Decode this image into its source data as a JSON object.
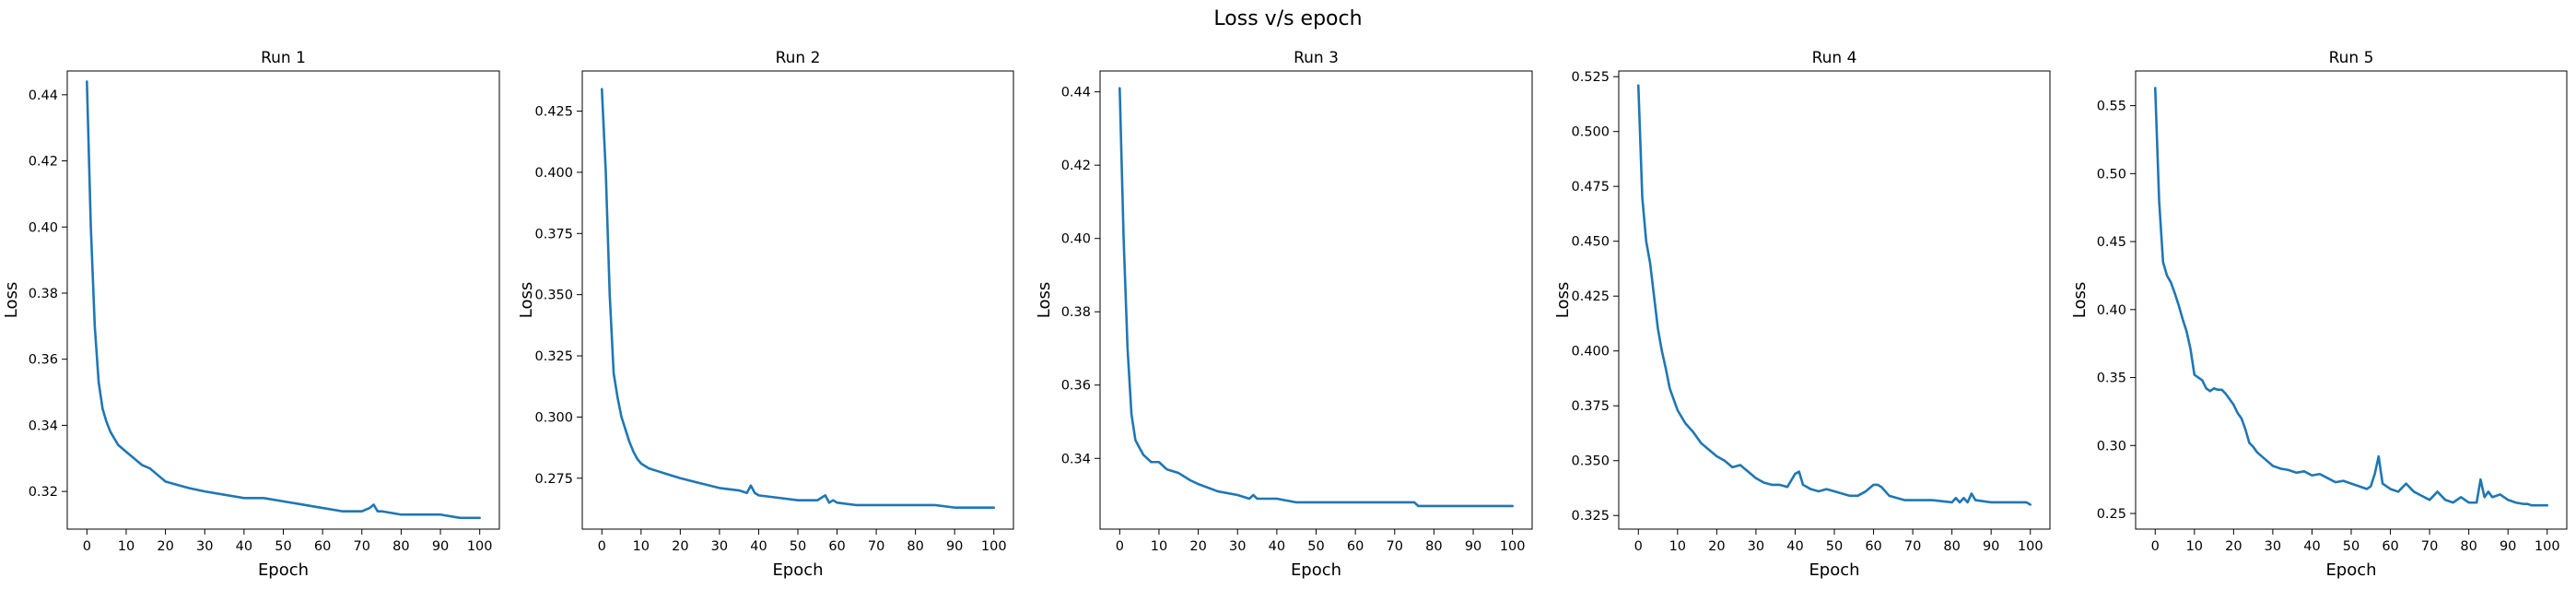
{
  "figure_title": "Loss v/s epoch",
  "colors": {
    "line": "#1f77b4"
  },
  "chart_data": [
    {
      "type": "line",
      "title": "Run 1",
      "xlabel": "Epoch",
      "ylabel": "Loss",
      "xlim": [
        -5,
        105
      ],
      "ylim": [
        0.3086,
        0.4472
      ],
      "xticks": [
        0,
        10,
        20,
        30,
        40,
        50,
        60,
        70,
        80,
        90,
        100
      ],
      "yticks": [
        0.32,
        0.34,
        0.36,
        0.38,
        0.4,
        0.42,
        0.44
      ],
      "ytick_labels": [
        "0.32",
        "0.34",
        "0.36",
        "0.38",
        "0.40",
        "0.42",
        "0.44"
      ],
      "grid": false,
      "x": [
        0,
        1,
        2,
        3,
        4,
        5,
        6,
        7,
        8,
        10,
        12,
        14,
        16,
        18,
        20,
        23,
        26,
        30,
        35,
        40,
        45,
        50,
        55,
        60,
        65,
        70,
        72,
        73,
        74,
        75,
        80,
        85,
        90,
        95,
        100
      ],
      "y": [
        0.444,
        0.4,
        0.37,
        0.353,
        0.345,
        0.341,
        0.338,
        0.336,
        0.334,
        0.332,
        0.33,
        0.328,
        0.327,
        0.325,
        0.323,
        0.322,
        0.321,
        0.32,
        0.319,
        0.318,
        0.318,
        0.317,
        0.316,
        0.315,
        0.314,
        0.314,
        0.315,
        0.316,
        0.314,
        0.314,
        0.313,
        0.313,
        0.313,
        0.312,
        0.312
      ]
    },
    {
      "type": "line",
      "title": "Run 2",
      "xlabel": "Epoch",
      "ylabel": "Loss",
      "xlim": [
        -5,
        105
      ],
      "ylim": [
        0.2542,
        0.4414
      ],
      "xticks": [
        0,
        10,
        20,
        30,
        40,
        50,
        60,
        70,
        80,
        90,
        100
      ],
      "yticks": [
        0.275,
        0.3,
        0.325,
        0.35,
        0.375,
        0.4,
        0.425
      ],
      "ytick_labels": [
        "0.275",
        "0.300",
        "0.325",
        "0.350",
        "0.375",
        "0.400",
        "0.425"
      ],
      "grid": false,
      "x": [
        0,
        1,
        2,
        3,
        4,
        5,
        6,
        7,
        8,
        9,
        10,
        12,
        14,
        16,
        18,
        20,
        25,
        30,
        35,
        37,
        38,
        39,
        40,
        45,
        50,
        55,
        57,
        58,
        59,
        60,
        65,
        70,
        75,
        80,
        85,
        90,
        95,
        100
      ],
      "y": [
        0.434,
        0.4,
        0.35,
        0.318,
        0.308,
        0.3,
        0.295,
        0.29,
        0.286,
        0.283,
        0.281,
        0.279,
        0.278,
        0.277,
        0.276,
        0.275,
        0.273,
        0.271,
        0.27,
        0.269,
        0.272,
        0.269,
        0.268,
        0.267,
        0.266,
        0.266,
        0.268,
        0.265,
        0.266,
        0.265,
        0.264,
        0.264,
        0.264,
        0.264,
        0.264,
        0.263,
        0.263,
        0.263
      ]
    },
    {
      "type": "line",
      "title": "Run 3",
      "xlabel": "Epoch",
      "ylabel": "Loss",
      "xlim": [
        -5,
        105
      ],
      "ylim": [
        0.3207,
        0.4457
      ],
      "xticks": [
        0,
        10,
        20,
        30,
        40,
        50,
        60,
        70,
        80,
        90,
        100
      ],
      "yticks": [
        0.34,
        0.36,
        0.38,
        0.4,
        0.42,
        0.44
      ],
      "ytick_labels": [
        "0.34",
        "0.36",
        "0.38",
        "0.40",
        "0.42",
        "0.44"
      ],
      "grid": false,
      "x": [
        0,
        1,
        2,
        3,
        4,
        5,
        6,
        7,
        8,
        10,
        12,
        15,
        18,
        20,
        25,
        30,
        33,
        34,
        35,
        40,
        45,
        50,
        55,
        60,
        65,
        70,
        75,
        76,
        77,
        80,
        85,
        90,
        95,
        100
      ],
      "y": [
        0.441,
        0.4,
        0.37,
        0.352,
        0.345,
        0.343,
        0.341,
        0.34,
        0.339,
        0.339,
        0.337,
        0.336,
        0.334,
        0.333,
        0.331,
        0.33,
        0.329,
        0.33,
        0.329,
        0.329,
        0.328,
        0.328,
        0.328,
        0.328,
        0.328,
        0.328,
        0.328,
        0.327,
        0.327,
        0.327,
        0.327,
        0.327,
        0.327,
        0.327
      ]
    },
    {
      "type": "line",
      "title": "Run 4",
      "xlabel": "Epoch",
      "ylabel": "Loss",
      "xlim": [
        -5,
        105
      ],
      "ylim": [
        0.3188,
        0.5276
      ],
      "xticks": [
        0,
        10,
        20,
        30,
        40,
        50,
        60,
        70,
        80,
        90,
        100
      ],
      "yticks": [
        0.325,
        0.35,
        0.375,
        0.4,
        0.425,
        0.45,
        0.475,
        0.5,
        0.525
      ],
      "ytick_labels": [
        "0.325",
        "0.350",
        "0.375",
        "0.400",
        "0.425",
        "0.450",
        "0.475",
        "0.500",
        "0.525"
      ],
      "grid": false,
      "x": [
        0,
        1,
        2,
        3,
        4,
        5,
        6,
        7,
        8,
        9,
        10,
        12,
        14,
        16,
        18,
        20,
        22,
        24,
        26,
        28,
        30,
        32,
        34,
        36,
        38,
        40,
        41,
        42,
        44,
        46,
        48,
        50,
        52,
        54,
        56,
        58,
        60,
        61,
        62,
        64,
        66,
        68,
        70,
        75,
        80,
        81,
        82,
        83,
        84,
        85,
        86,
        90,
        95,
        99,
        100
      ],
      "y": [
        0.521,
        0.47,
        0.45,
        0.44,
        0.425,
        0.41,
        0.4,
        0.392,
        0.383,
        0.378,
        0.373,
        0.367,
        0.363,
        0.358,
        0.355,
        0.352,
        0.35,
        0.347,
        0.348,
        0.345,
        0.342,
        0.34,
        0.339,
        0.339,
        0.338,
        0.344,
        0.345,
        0.339,
        0.337,
        0.336,
        0.337,
        0.336,
        0.335,
        0.334,
        0.334,
        0.336,
        0.339,
        0.339,
        0.338,
        0.334,
        0.333,
        0.332,
        0.332,
        0.332,
        0.331,
        0.333,
        0.331,
        0.333,
        0.331,
        0.335,
        0.332,
        0.331,
        0.331,
        0.331,
        0.33
      ]
    },
    {
      "type": "line",
      "title": "Run 5",
      "xlabel": "Epoch",
      "ylabel": "Loss",
      "xlim": [
        -5,
        105
      ],
      "ylim": [
        0.2385,
        0.5755
      ],
      "xticks": [
        0,
        10,
        20,
        30,
        40,
        50,
        60,
        70,
        80,
        90,
        100
      ],
      "yticks": [
        0.25,
        0.3,
        0.35,
        0.4,
        0.45,
        0.5,
        0.55
      ],
      "ytick_labels": [
        "0.25",
        "0.30",
        "0.35",
        "0.40",
        "0.45",
        "0.50",
        "0.55"
      ],
      "grid": false,
      "x": [
        0,
        1,
        2,
        3,
        4,
        5,
        6,
        7,
        8,
        9,
        10,
        11,
        12,
        13,
        14,
        15,
        16,
        17,
        18,
        19,
        20,
        21,
        22,
        23,
        24,
        25,
        26,
        28,
        30,
        32,
        34,
        36,
        38,
        40,
        42,
        44,
        46,
        48,
        50,
        52,
        54,
        55,
        56,
        57,
        58,
        60,
        62,
        64,
        66,
        68,
        70,
        72,
        74,
        76,
        78,
        80,
        82,
        83,
        84,
        85,
        86,
        88,
        90,
        92,
        94,
        95,
        96,
        98,
        100
      ],
      "y": [
        0.563,
        0.48,
        0.435,
        0.425,
        0.42,
        0.412,
        0.403,
        0.393,
        0.384,
        0.371,
        0.352,
        0.35,
        0.348,
        0.342,
        0.34,
        0.342,
        0.341,
        0.341,
        0.338,
        0.334,
        0.33,
        0.324,
        0.32,
        0.312,
        0.302,
        0.299,
        0.295,
        0.29,
        0.285,
        0.283,
        0.282,
        0.28,
        0.281,
        0.278,
        0.279,
        0.276,
        0.273,
        0.274,
        0.272,
        0.27,
        0.268,
        0.27,
        0.279,
        0.292,
        0.272,
        0.268,
        0.266,
        0.272,
        0.266,
        0.263,
        0.26,
        0.266,
        0.26,
        0.258,
        0.262,
        0.258,
        0.258,
        0.275,
        0.262,
        0.266,
        0.262,
        0.264,
        0.26,
        0.258,
        0.257,
        0.257,
        0.256,
        0.256,
        0.256
      ]
    }
  ]
}
